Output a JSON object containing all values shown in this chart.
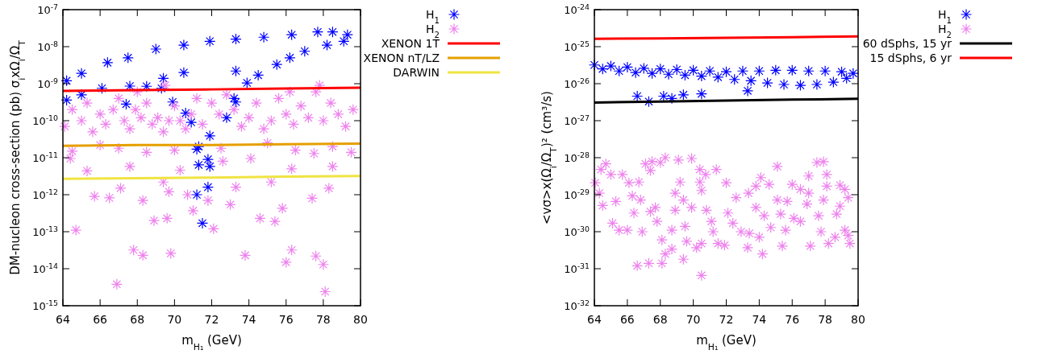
{
  "chart_data": [
    {
      "type": "scatter",
      "xlabel": "m$_{H₁}$ (GeV)",
      "ylabel": "DM-nucleon cross-section (pb) σ$_{i}$xΩ$_{i}$/Ω$_{T}$",
      "log": "y",
      "grid": false,
      "legend": "top right",
      "xlim": [
        64,
        80
      ],
      "xticks": [
        64,
        66,
        68,
        70,
        72,
        74,
        76,
        78,
        80
      ],
      "ylim": [
        1e-15,
        1e-07
      ],
      "yticks": [
        {
          "value": 1e-15,
          "label": "10$^{-15}$"
        },
        {
          "value": 1e-14,
          "label": "10$^{-14}$"
        },
        {
          "value": 1e-13,
          "label": "10$^{-13}$"
        },
        {
          "value": 1e-12,
          "label": "10$^{-12}$"
        },
        {
          "value": 1e-11,
          "label": "10$^{-11}$"
        },
        {
          "value": 1e-10,
          "label": "10$^{-10}$"
        },
        {
          "value": 1e-09,
          "label": "10$^{-9}$"
        },
        {
          "value": 1e-08,
          "label": "10$^{-8}$"
        },
        {
          "value": 1e-07,
          "label": "10$^{-7}$"
        }
      ],
      "series": [
        {
          "name": "H$_{1}$",
          "color": "#0000ff",
          "marker": "cross",
          "x": [
            64.2,
            65.0,
            66.4,
            67.5,
            69.0,
            70.5,
            71.9,
            73.3,
            74.8,
            76.3,
            77.7,
            78.5,
            79.3,
            79.1,
            78.2,
            77.0,
            76.2,
            75.5,
            74.5,
            73.9,
            73.3,
            72.8,
            71.9,
            71.2,
            71.8,
            71.3,
            71.9,
            71.8,
            71.2,
            71.5,
            64.2,
            65.0,
            66.1,
            67.6,
            68.5,
            69.3,
            69.9,
            70.6,
            70.9,
            71.3,
            67.4,
            69.4,
            70.5,
            73.3,
            73.2
          ],
          "values": [
            1.2e-09,
            1.9e-09,
            3.7e-09,
            5e-09,
            8.6e-09,
            1.1e-08,
            1.4e-08,
            1.6e-08,
            1.8e-08,
            2.1e-08,
            2.5e-08,
            2.5e-08,
            2.1e-08,
            1.4e-08,
            1.1e-08,
            7.5e-09,
            5e-09,
            3.3e-09,
            1.7e-09,
            1.05e-09,
            3.2e-10,
            1.2e-10,
            3.9e-11,
            1.7e-11,
            9e-12,
            6.4e-12,
            5.8e-12,
            1.6e-12,
            1e-12,
            1.7e-13,
            3.6e-10,
            5e-10,
            7.5e-10,
            8.6e-10,
            8.5e-10,
            7.5e-10,
            3.2e-10,
            1.6e-10,
            9e-11,
            2e-11,
            2.8e-10,
            1.4e-09,
            2e-09,
            2.2e-09,
            4e-10
          ]
        },
        {
          "name": "H$_{2}$",
          "color": "#ee82ee",
          "marker": "cross",
          "x": [
            64.1,
            64.5,
            65,
            65.3,
            65.6,
            66,
            66.3,
            66.7,
            67,
            67.3,
            67.6,
            67.9,
            68.2,
            68.5,
            68.8,
            69.1,
            69.4,
            69.7,
            70,
            70.3,
            70.6,
            70.9,
            71.2,
            71.5,
            72,
            72.4,
            72.8,
            73.2,
            73.6,
            74,
            74.4,
            74.8,
            75.2,
            75.6,
            76,
            76.4,
            76.8,
            77.2,
            77.6,
            78,
            78.4,
            78.8,
            79.2,
            79.6,
            77.8,
            76.2,
            69.5,
            68,
            64.4,
            65.3,
            65.7,
            66.5,
            67.1,
            67.6,
            68.3,
            68.9,
            69.6,
            69.4,
            69.7,
            70.3,
            70.7,
            71.0,
            71.8,
            72.1,
            72.6,
            73.3,
            73.0,
            74.1,
            74.6,
            75.4,
            75.2,
            75.8,
            76.3,
            77.4,
            78.3,
            78.5,
            77.5,
            64.7,
            67.8,
            68.3,
            69.8,
            73.8,
            66.9,
            76.3,
            76.0,
            77.6,
            78.0,
            78.1,
            64.5,
            66,
            67,
            68.5,
            70,
            72.5,
            75,
            76.5,
            78.5,
            79.5
          ],
          "values": [
            7e-11,
            2e-10,
            1e-10,
            3e-10,
            5e-11,
            1.5e-10,
            8e-11,
            2e-10,
            4e-10,
            1e-10,
            6e-11,
            2e-10,
            1.2e-10,
            3e-10,
            8e-11,
            1.2e-10,
            5e-11,
            1e-10,
            2.5e-10,
            1e-10,
            6e-11,
            1.5e-10,
            4e-10,
            8e-11,
            3e-10,
            1.5e-10,
            5e-10,
            2e-10,
            7e-11,
            1.2e-10,
            3e-10,
            6e-11,
            1e-10,
            4e-10,
            1.5e-10,
            8e-11,
            2.5e-10,
            1.2e-10,
            6e-10,
            1e-10,
            3e-10,
            1.5e-10,
            7e-11,
            2e-10,
            9e-10,
            6e-10,
            9e-10,
            6e-10,
            9.5e-12,
            4.4e-12,
            9e-13,
            8.2e-13,
            1.5e-12,
            5.8e-12,
            7e-13,
            2e-13,
            2.3e-13,
            2.2e-12,
            1.2e-12,
            4.6e-12,
            1e-12,
            3.7e-13,
            7e-13,
            1.2e-13,
            8e-12,
            1.6e-12,
            5.4e-13,
            9.5e-12,
            2.3e-13,
            1.9e-13,
            2.2e-12,
            4.3e-13,
            5e-12,
            8e-13,
            1.5e-12,
            5.8e-12,
            1.3e-11,
            1.1e-13,
            3.2e-14,
            2.3e-14,
            2.6e-14,
            2.3e-14,
            3.8e-15,
            3.2e-14,
            1.5e-14,
            2.2e-14,
            1.3e-14,
            2.4e-15,
            1.5e-11,
            2.2e-11,
            1.8e-11,
            1.4e-11,
            1.6e-11,
            1.8e-11,
            2.5e-11,
            1.6e-11,
            2e-11,
            1.4e-11
          ]
        },
        {
          "name": "XENON 1T",
          "type": "line",
          "color": "#ff0000",
          "x": [
            64,
            68,
            72,
            76,
            80
          ],
          "values": [
            6.4e-10,
            6.7e-10,
            7e-10,
            7.4e-10,
            7.8e-10
          ]
        },
        {
          "name": "XENON nT/LZ",
          "type": "line",
          "color": "#e69f00",
          "x": [
            64,
            68,
            72,
            76,
            80
          ],
          "values": [
            2.1e-11,
            2.2e-11,
            2.2e-11,
            2.3e-11,
            2.4e-11
          ]
        },
        {
          "name": "DARWIN",
          "type": "line",
          "color": "#f0e442",
          "x": [
            64,
            68,
            72,
            76,
            80
          ],
          "values": [
            2.7e-12,
            2.8e-12,
            2.9e-12,
            3.1e-12,
            3.2e-12
          ]
        }
      ]
    },
    {
      "type": "scatter",
      "xlabel": "m$_{H₁}$ (GeV)",
      "ylabel": "<vσ>x(Ω$_{i}$/Ω$_{T}$)² (cm³/s)",
      "log": "y",
      "grid": false,
      "legend": "top right",
      "xlim": [
        64,
        80
      ],
      "xticks": [
        64,
        66,
        68,
        70,
        72,
        74,
        76,
        78,
        80
      ],
      "ylim": [
        1e-32,
        1e-24
      ],
      "yticks": [
        {
          "value": 1e-32,
          "label": "10$^{-32}$"
        },
        {
          "value": 1e-31,
          "label": "10$^{-31}$"
        },
        {
          "value": 1e-30,
          "label": "10$^{-30}$"
        },
        {
          "value": 1e-29,
          "label": "10$^{-29}$"
        },
        {
          "value": 1e-28,
          "label": "10$^{-28}$"
        },
        {
          "value": 1e-27,
          "label": "10$^{-27}$"
        },
        {
          "value": 1e-26,
          "label": "10$^{-26}$"
        },
        {
          "value": 1e-25,
          "label": "10$^{-25}$"
        },
        {
          "value": 1e-24,
          "label": "10$^{-24}$"
        }
      ],
      "series": [
        {
          "name": "H$_{1}$",
          "color": "#0000ff",
          "marker": "cross",
          "x": [
            64,
            65,
            66,
            67,
            68,
            69,
            70,
            71,
            72,
            73,
            74,
            75,
            76,
            77,
            78,
            79,
            79.7,
            64.5,
            65.5,
            66.5,
            67.5,
            68.5,
            69.5,
            70.5,
            71.5,
            72.5,
            73.5,
            74.5,
            75.5,
            76.5,
            77.5,
            78.5,
            79.3,
            66.6,
            67.3,
            68.2,
            68.7,
            69.4,
            70.5,
            73.3
          ],
          "values": [
            3.2e-26,
            3e-26,
            2.8e-26,
            2.6e-26,
            2.5e-26,
            2.4e-26,
            2.3e-26,
            2.2e-26,
            2.1e-26,
            2.2e-26,
            2.2e-26,
            2.3e-26,
            2.3e-26,
            2.2e-26,
            2.2e-26,
            2.1e-26,
            1.9e-26,
            2.5e-26,
            2.2e-26,
            2e-26,
            1.9e-26,
            1.8e-26,
            1.7e-26,
            1.6e-26,
            1.5e-26,
            1.3e-26,
            1.2e-26,
            1.05e-26,
            9.5e-27,
            9e-27,
            9.5e-27,
            1.1e-26,
            1.4e-26,
            4.6e-27,
            3.3e-27,
            4.6e-27,
            4e-27,
            5e-27,
            5.3e-27,
            6.4e-27
          ]
        },
        {
          "name": "H$_{2}$",
          "color": "#ee82ee",
          "marker": "cross",
          "x": [
            64.05,
            64.4,
            64.7,
            65.0,
            64.3,
            64.5,
            65.1,
            65.5,
            65.3,
            65.7,
            66.1,
            66.0,
            66.3,
            66.4,
            66.7,
            66.8,
            66.9,
            66.6,
            67.1,
            67.4,
            67.5,
            67.3,
            67.4,
            67.7,
            67.8,
            68.0,
            68.3,
            68.1,
            68.1,
            68.3,
            68.7,
            68.7,
            68.9,
            68.9,
            69.1,
            69.2,
            69.4,
            69.4,
            69.5,
            69.6,
            69.9,
            69.9,
            70.2,
            70.4,
            70.4,
            70.5,
            70.5,
            70.5,
            70.75,
            70.8,
            71.1,
            71.4,
            71.2,
            71.5,
            71.9,
            72.0,
            72.1,
            72.4,
            72.6,
            72.9,
            73.3,
            73.35,
            73.4,
            73.8,
            73.8,
            74.1,
            74.0,
            74.2,
            74.3,
            74.6,
            74.7,
            75.1,
            75.1,
            75.3,
            75.4,
            75.6,
            75.7,
            76.0,
            76.1,
            76.5,
            76.5,
            76.9,
            77.0,
            77.1,
            77.0,
            77.5,
            77.6,
            77.75,
            77.9,
            77.9,
            78.1,
            78.1,
            78.2,
            78.6,
            78.7,
            78.9,
            78.9,
            79.2,
            79.2,
            79.5,
            79.4,
            79.4
          ],
          "values": [
            2.1e-29,
            4.8e-29,
            6.8e-29,
            3.5e-29,
            1.1e-29,
            5.1e-30,
            1.7e-30,
            1.1e-30,
            6.6e-30,
            3.5e-29,
            2.1e-29,
            1.1e-30,
            9.3e-30,
            3.2e-30,
            2.2e-29,
            7.2e-30,
            1e-30,
            1.2e-31,
            6.8e-29,
            4.5e-29,
            7.9e-29,
            1.4e-31,
            3.5e-30,
            4.5e-30,
            1.9e-30,
            7.4e-29,
            1e-28,
            6e-31,
            1.4e-31,
            2.5e-31,
            3.4e-31,
            1.1e-30,
            1.1e-29,
            3.8e-30,
            8.7e-29,
            2.2e-29,
            7.2e-30,
            1.8e-31,
            1.4e-30,
            5.5e-31,
            9.5e-29,
            4.5e-30,
            3.7e-31,
            4.8e-29,
            2.2e-29,
            1.3e-29,
            4.8e-31,
            6.6e-32,
            3.5e-29,
            3.8e-30,
            1.9e-30,
            4.8e-29,
            1e-30,
            4.8e-31,
            4.3e-31,
            2.1e-29,
            3.2e-30,
            1.7e-30,
            8.3e-30,
            1e-30,
            3.7e-31,
            1.1e-29,
            9e-31,
            1.7e-29,
            4.5e-30,
            2.9e-29,
            7.1e-31,
            2.5e-31,
            2.7e-30,
            1.9e-29,
            1.3e-30,
            5.8e-29,
            7.2e-30,
            3e-30,
            4.1e-31,
            1.1e-30,
            6.6e-30,
            1.9e-29,
            2.3e-30,
            1.4e-29,
            1.9e-30,
            5.6e-30,
            3.2e-29,
            4.1e-31,
            1.1e-29,
            7.4e-29,
            2.7e-30,
            1e-30,
            7.8e-29,
            7.2e-30,
            3.5e-29,
            1.7e-29,
            4.8e-31,
            7.1e-31,
            3e-30,
            1.8e-29,
            4.9e-30,
            1.1e-30,
            1.4e-29,
            4.8e-31,
            7.9e-31,
            8.3e-30
          ]
        },
        {
          "name": "60 dSphs, 15 yr",
          "type": "line",
          "color": "#000000",
          "x": [
            64,
            68,
            72,
            76,
            80
          ],
          "values": [
            3.1e-27,
            3.3e-27,
            3.5e-27,
            3.7e-27,
            3.9e-27
          ]
        },
        {
          "name": "15 dSphs, 6 yr",
          "type": "line",
          "color": "#ff0000",
          "x": [
            64,
            68,
            72,
            76,
            80
          ],
          "values": [
            1.63e-25,
            1.68e-25,
            1.74e-25,
            1.8e-25,
            1.9e-25
          ]
        }
      ]
    }
  ]
}
